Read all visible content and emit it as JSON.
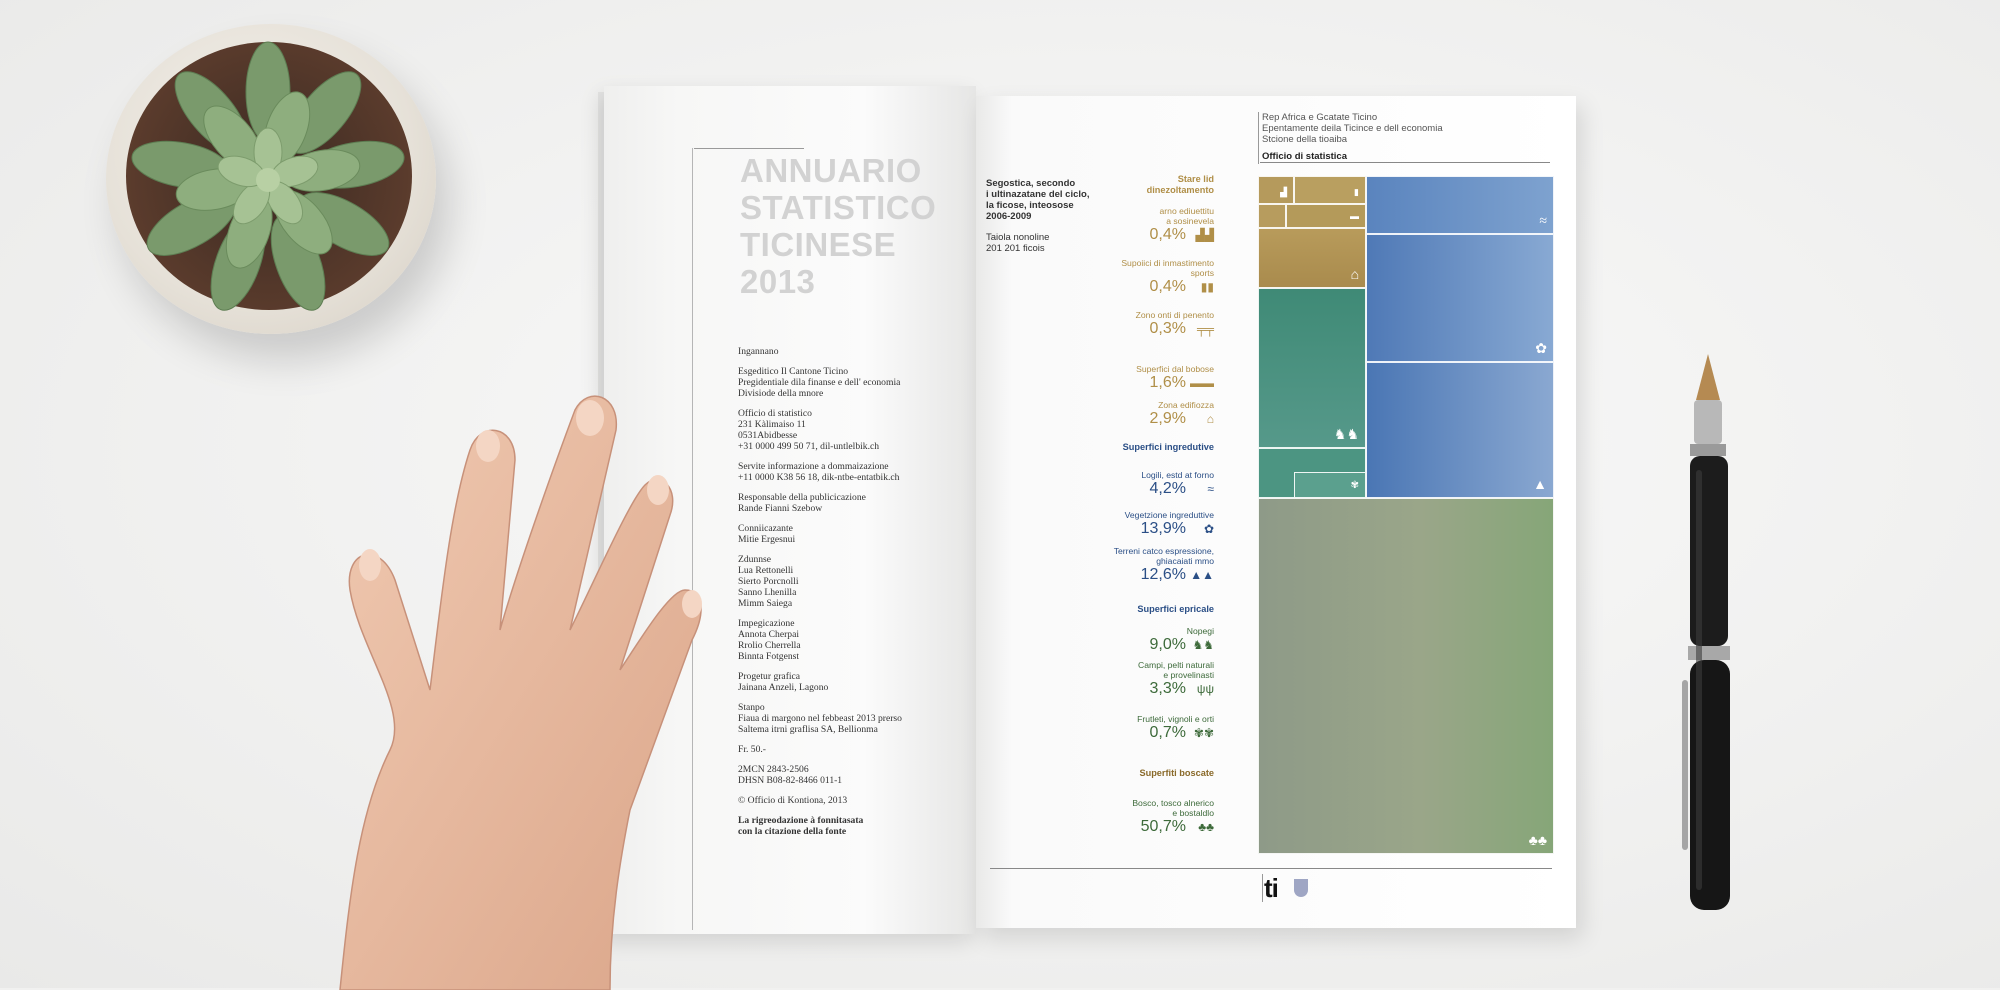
{
  "book": {
    "cover_title": [
      "ANNUARIO",
      "STATISTICO",
      "TICINESE",
      "2013"
    ],
    "colophon": [
      [
        "Ingannano"
      ],
      [
        "Esgeditico Il Cantone Ticino",
        "Pregidentiale dila finanse e dell' economia",
        "Divisiode della mnore"
      ],
      [
        "Officio di statistico",
        "231 Kàlimaiso 11",
        "0531Abidbesse",
        "+31 0000 499 50 71, dil-untlelbik.ch"
      ],
      [
        "Servite informazione a dommaizazione",
        "+11 0000 K38 56 18, dik-ntbe-entatbik.ch"
      ],
      [
        "Responsable della publicicazione",
        "Rande Fianni Szebow"
      ],
      [
        "Conniicazante",
        "Mitie Ergesnui"
      ],
      [
        "Zdunnse",
        "Lua Rettonelli",
        "Sierto Porcnolli",
        "Sanno Lhenilla",
        "Mimm Saiega"
      ],
      [
        "Impegicazione",
        "Annota Cherpai",
        "Rrolio Cherrella",
        "Binnta Fotgenst"
      ],
      [
        "Progetur grafica",
        "Jainana Anzeli, Lagono"
      ],
      [
        "Stanpo",
        "Fiaua di margono nel febbeast 2013 prerso",
        "Saltema itrni graflisa SA, Bellionma"
      ],
      [
        "Fr. 50.-"
      ],
      [
        "2MCN 2843-2506",
        "DHSN B08-82-8466 011-1"
      ],
      [
        "© Officio di Kontiona, 2013"
      ],
      [
        "La rigreodazione à fonnitasata",
        "con la citazione della fonte"
      ]
    ]
  },
  "right_page": {
    "header": [
      "Rep Africa e Gcatate Ticino",
      "Epentamente deila Ticince e dell economia",
      "Stcione della tioaiba"
    ],
    "header_office": "Officio di statistica",
    "intro": [
      "Segostica, secondo",
      "i ultinazatane del ciclo,",
      "la ficose, inteosose",
      "2006-2009"
    ],
    "intro_total": [
      "Taiola nonoline",
      "201 201 ficois"
    ],
    "sections": [
      {
        "title": [
          "Stare lid",
          "dinezoltamento"
        ],
        "color": "#b08f48"
      },
      {
        "title": [
          "Superfici ingredutive"
        ],
        "color": "#2b4f86"
      },
      {
        "title": [
          "Superfici epricale"
        ],
        "color": "#2b4f86"
      },
      {
        "title": [
          "Superfiti boscate"
        ],
        "color": "#8a6a2a"
      }
    ],
    "items": [
      {
        "label": [
          "arno ediuettitu",
          "a sosinevela"
        ],
        "pct": "0,4%",
        "color": "#b08f48",
        "icon": "factory-icon"
      },
      {
        "label": [
          "Supoiici di inmastimento",
          "sports"
        ],
        "pct": "0,4%",
        "color": "#b08f48",
        "icon": "tools-icon"
      },
      {
        "label": [
          "Zono onti di penento"
        ],
        "pct": "0,3%",
        "color": "#b08f48",
        "icon": "bench-icon"
      },
      {
        "label": [
          "Superfici dal bobose"
        ],
        "pct": "1,6%",
        "color": "#b08f48",
        "icon": "car-icon"
      },
      {
        "label": [
          "Zona edifiozza"
        ],
        "pct": "2,9%",
        "color": "#b08f48",
        "icon": "house-icon"
      },
      {
        "label": [
          "Logili, estd at forno"
        ],
        "pct": "4,2%",
        "color": "#2b4f86",
        "icon": "water-icon"
      },
      {
        "label": [
          "Vegetzione ingreduttive"
        ],
        "pct": "13,9%",
        "color": "#2b4f86",
        "icon": "flower-icon"
      },
      {
        "label": [
          "Terreni catco espressione,",
          "ghiacaiati mmo"
        ],
        "pct": "12,6%",
        "color": "#2b4f86",
        "icon": "mountain-icon"
      },
      {
        "label": [
          "Nopegi"
        ],
        "pct": "9,0%",
        "color": "#3d6a3a",
        "icon": "cows-icon"
      },
      {
        "label": [
          "Campi, pelti naturali",
          "e provelinasti"
        ],
        "pct": "3,3%",
        "color": "#3d6a3a",
        "icon": "wheat-icon"
      },
      {
        "label": [
          "Frutleti, vignoli e orti"
        ],
        "pct": "0,7%",
        "color": "#3d6a3a",
        "icon": "fruit-icon"
      },
      {
        "label": [
          "Bosco, tosco alnerico",
          "e bostaldlo"
        ],
        "pct": "50,7%",
        "color": "#3d6a3a",
        "icon": "trees-icon"
      }
    ],
    "logo_text": "ti"
  }
}
